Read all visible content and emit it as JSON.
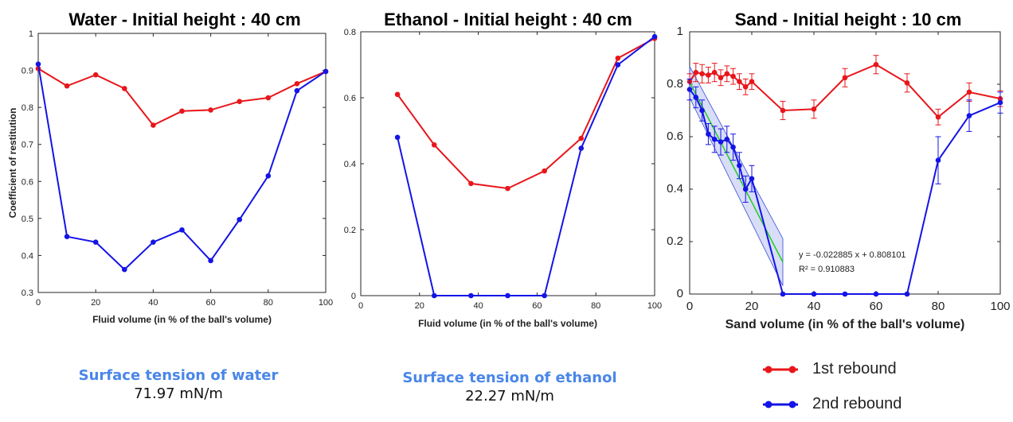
{
  "chart_data": [
    {
      "type": "line",
      "title": "Water - Initial height : 40 cm",
      "xlabel": "Fluid volume (in % of the ball's volume)",
      "ylabel": "Coefficient of restitution",
      "xlim": [
        0,
        100
      ],
      "ylim": [
        0.3,
        1
      ],
      "xticks": [
        0,
        20,
        40,
        60,
        80,
        100
      ],
      "yticks": [
        0.3,
        0.4,
        0.5,
        0.6,
        0.7,
        0.8,
        0.9,
        1
      ],
      "ytick_labels": [
        "0.3",
        "0.4",
        "0.5",
        "0.6",
        "0.7",
        "0.8",
        "0.9",
        "1"
      ],
      "series": [
        {
          "name": "1st rebound",
          "color": "#e8161b",
          "x": [
            0,
            10,
            20,
            30,
            40,
            50,
            60,
            70,
            80,
            90,
            100
          ],
          "y": [
            0.905,
            0.858,
            0.888,
            0.851,
            0.752,
            0.79,
            0.793,
            0.816,
            0.826,
            0.864,
            0.897
          ]
        },
        {
          "name": "2nd rebound",
          "color": "#1414e6",
          "x": [
            0,
            10,
            20,
            30,
            40,
            50,
            60,
            70,
            80,
            90,
            100
          ],
          "y": [
            0.917,
            0.451,
            0.436,
            0.362,
            0.436,
            0.469,
            0.386,
            0.497,
            0.615,
            0.845,
            0.897
          ]
        }
      ]
    },
    {
      "type": "line",
      "title": "Ethanol - Initial height : 40 cm",
      "xlabel": "Fluid volume (in % of the ball's volume)",
      "ylabel": "",
      "xlim": [
        0,
        100
      ],
      "ylim": [
        0,
        0.8
      ],
      "xticks": [
        0,
        20,
        40,
        60,
        80,
        100
      ],
      "yticks": [
        0,
        0.2,
        0.4,
        0.6,
        0.8
      ],
      "ytick_labels": [
        "0",
        "0.2",
        "0.4",
        "0.6",
        "0.8"
      ],
      "series": [
        {
          "name": "1st rebound",
          "color": "#e8161b",
          "x": [
            12.5,
            25,
            37.5,
            50,
            62.5,
            75,
            87.5,
            100
          ],
          "y": [
            0.61,
            0.457,
            0.34,
            0.325,
            0.378,
            0.477,
            0.72,
            0.78
          ]
        },
        {
          "name": "2nd rebound",
          "color": "#1414e6",
          "x": [
            12.5,
            25,
            37.5,
            50,
            62.5,
            75,
            87.5,
            100
          ],
          "y": [
            0.48,
            0,
            0,
            0,
            0,
            0.447,
            0.7,
            0.785
          ]
        }
      ]
    },
    {
      "type": "line",
      "title": "Sand - Initial height : 10 cm",
      "xlabel": "Sand volume (in % of the ball's volume)",
      "ylabel": "",
      "xlim": [
        0,
        100
      ],
      "ylim": [
        0,
        1
      ],
      "xticks": [
        0,
        20,
        40,
        60,
        80,
        100
      ],
      "yticks": [
        0,
        0.2,
        0.4,
        0.6,
        0.8,
        1
      ],
      "ytick_labels": [
        "0",
        "0.2",
        "0.4",
        "0.6",
        "0.8",
        "1"
      ],
      "series": [
        {
          "name": "1st rebound",
          "color": "#e8161b",
          "x": [
            0,
            2,
            4,
            6,
            8,
            10,
            12,
            14,
            16,
            18,
            20,
            30,
            40,
            50,
            60,
            70,
            80,
            90,
            100
          ],
          "y": [
            0.81,
            0.845,
            0.84,
            0.835,
            0.845,
            0.825,
            0.84,
            0.83,
            0.81,
            0.79,
            0.81,
            0.7,
            0.705,
            0.825,
            0.875,
            0.805,
            0.675,
            0.77,
            0.745
          ],
          "err": [
            0.03,
            0.035,
            0.035,
            0.03,
            0.035,
            0.03,
            0.03,
            0.03,
            0.03,
            0.03,
            0.03,
            0.035,
            0.035,
            0.035,
            0.035,
            0.035,
            0.03,
            0.035,
            0.03
          ]
        },
        {
          "name": "2nd rebound",
          "color": "#1414e6",
          "x": [
            0,
            2,
            4,
            6,
            8,
            10,
            12,
            14,
            16,
            18,
            20,
            30,
            40,
            50,
            60,
            70,
            80,
            90,
            100
          ],
          "y": [
            0.78,
            0.75,
            0.7,
            0.61,
            0.59,
            0.58,
            0.59,
            0.56,
            0.49,
            0.4,
            0.44,
            0,
            0,
            0,
            0,
            0,
            0.51,
            0.68,
            0.73
          ],
          "err": [
            0.04,
            0.04,
            0.04,
            0.04,
            0.05,
            0.05,
            0.05,
            0.05,
            0.05,
            0.05,
            0.05,
            0,
            0,
            0,
            0,
            0,
            0.09,
            0.06,
            0.04
          ]
        }
      ],
      "fit": {
        "color": "#22cc22",
        "band_color": "#a9b4f0",
        "slope": -0.022885,
        "intercept": 0.808101,
        "x_range": [
          0,
          30
        ],
        "equation": "y = -0.022885 x + 0.808101",
        "r2": "R² = 0.910883"
      }
    }
  ],
  "captions": {
    "water": {
      "title": "Surface tension of water",
      "value": "71.97  mN/m"
    },
    "ethanol": {
      "title": "Surface tension of ethanol",
      "value": "22.27 mN/m"
    }
  },
  "legend": [
    {
      "label": "1st rebound",
      "color": "#e8161b"
    },
    {
      "label": "2nd rebound",
      "color": "#1414e6"
    }
  ]
}
